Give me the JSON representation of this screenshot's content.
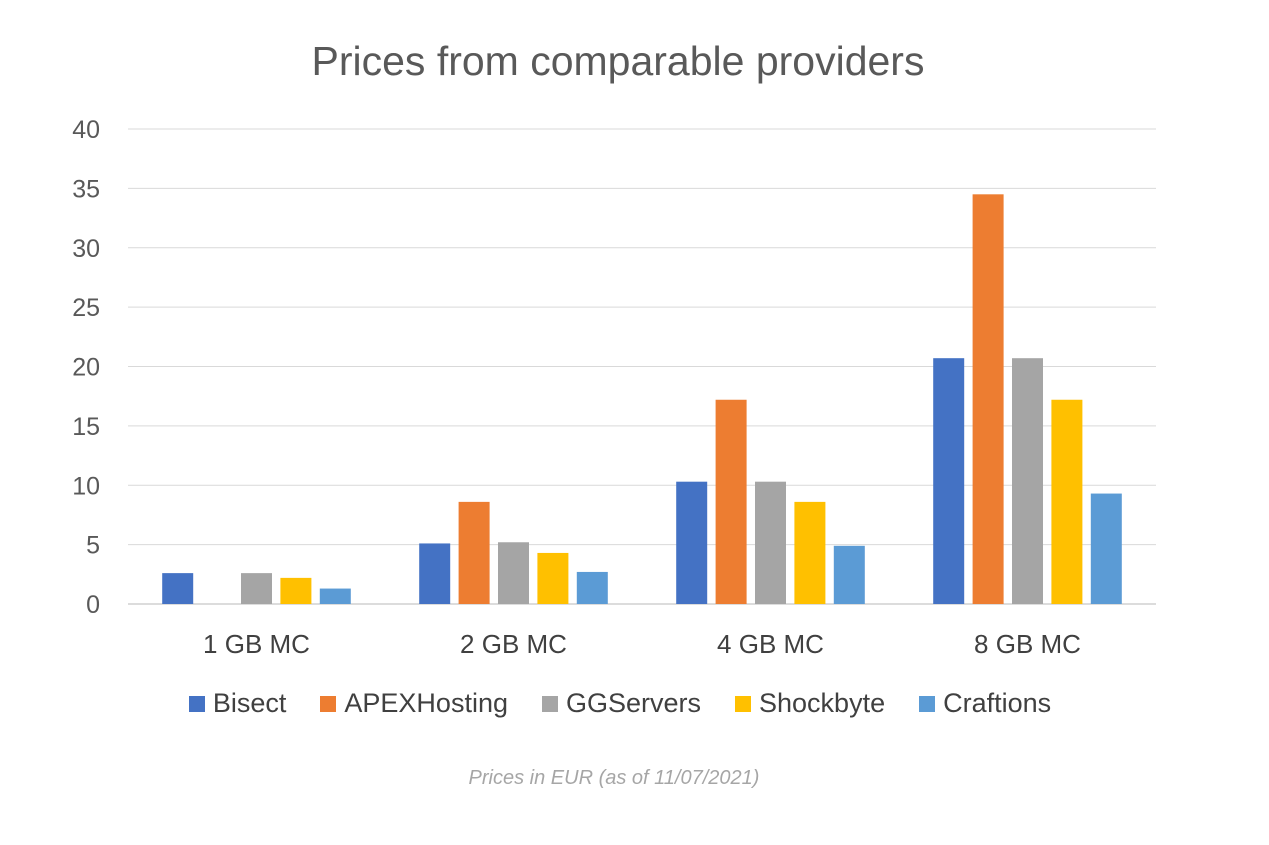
{
  "chart_data": {
    "type": "bar",
    "title": "Prices from comparable providers",
    "categories": [
      "1 GB MC",
      "2 GB MC",
      "4 GB MC",
      "8 GB MC"
    ],
    "series": [
      {
        "name": "Bisect",
        "color": "#4472c4",
        "values": [
          2.6,
          5.1,
          10.3,
          20.7
        ]
      },
      {
        "name": "APEXHosting",
        "color": "#ed7d31",
        "values": [
          null,
          8.6,
          17.2,
          34.5
        ]
      },
      {
        "name": "GGServers",
        "color": "#a5a5a5",
        "values": [
          2.6,
          5.2,
          10.3,
          20.7
        ]
      },
      {
        "name": "Shockbyte",
        "color": "#ffc000",
        "values": [
          2.2,
          4.3,
          8.6,
          17.2
        ]
      },
      {
        "name": "Craftions",
        "color": "#5b9bd5",
        "values": [
          1.3,
          2.7,
          4.9,
          9.3
        ]
      }
    ],
    "ylim": [
      0,
      40
    ],
    "yticks": [
      0,
      5,
      10,
      15,
      20,
      25,
      30,
      35,
      40
    ],
    "grid": true,
    "legend": "bottom",
    "caption": "Prices in EUR (as of 11/07/2021)"
  }
}
